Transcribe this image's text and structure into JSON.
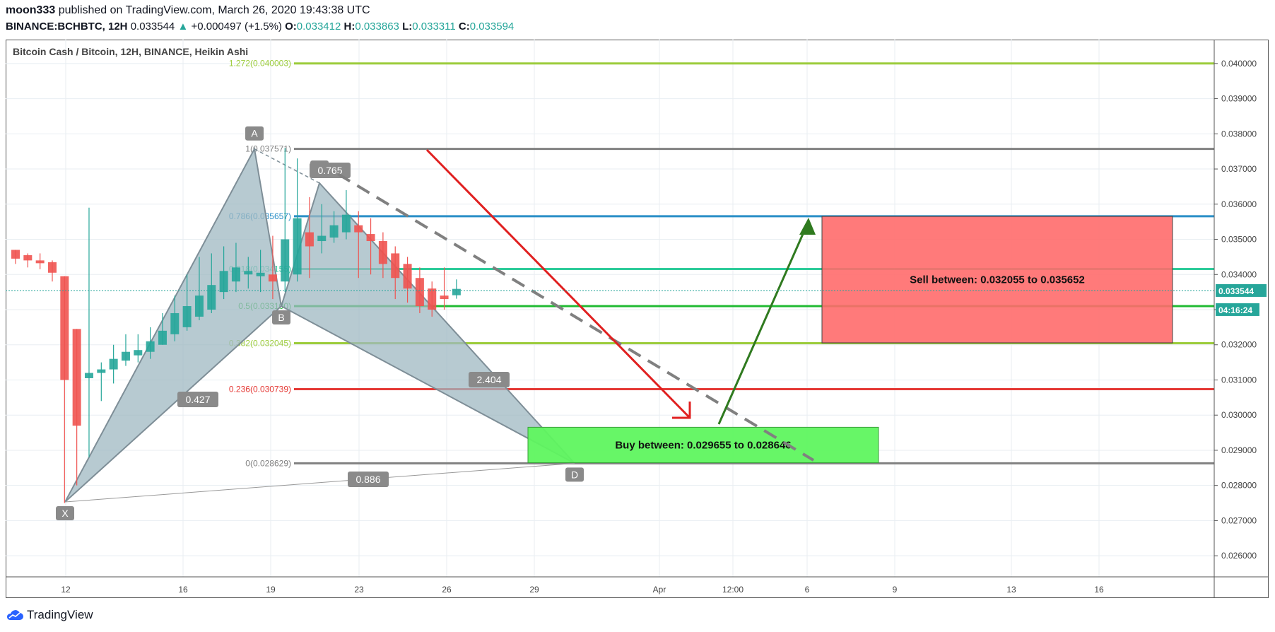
{
  "header": {
    "author": "moon333",
    "published_text": "published on TradingView.com, March 26, 2020 19:43:38 UTC",
    "symbol": "BINANCE:BCHBTC, 12H",
    "last": "0.033544",
    "change": "+0.000497 (+1.5%)",
    "o_label": "O:",
    "o": "0.033412",
    "h_label": "H:",
    "h": "0.033863",
    "l_label": "L:",
    "l": "0.033311",
    "c_label": "C:",
    "c": "0.033594"
  },
  "chart_title": "Bitcoin Cash / Bitcoin, 12H, BINANCE, Heikin Ashi",
  "price_tag": "0.033544",
  "countdown": "04:16:24",
  "logo_text": "TradingView",
  "colors": {
    "up": "#26a69a",
    "down": "#ef5350",
    "harmonic": "#9fb8c2",
    "buy": "#5ff55f",
    "sell": "#ff6b6b"
  },
  "chart_data": {
    "type": "candlestick",
    "x_ticks": [
      "12",
      "16",
      "19",
      "23",
      "26",
      "29",
      "Apr",
      "12:00",
      "6",
      "9",
      "13",
      "16"
    ],
    "y_ticks": [
      "0.040000",
      "0.039000",
      "0.038000",
      "0.037000",
      "0.036000",
      "0.035000",
      "0.034000",
      "0.033000",
      "0.032000",
      "0.031000",
      "0.030000",
      "0.029000",
      "0.028000",
      "0.027000",
      "0.026000"
    ],
    "ylim": [
      0.0254,
      0.0406
    ],
    "candles": [
      {
        "o": 0.0347,
        "h": 0.0347,
        "c": 0.03445,
        "l": 0.0343
      },
      {
        "o": 0.03455,
        "h": 0.0346,
        "c": 0.0344,
        "l": 0.0342
      },
      {
        "o": 0.0344,
        "h": 0.0346,
        "c": 0.03432,
        "l": 0.03415
      },
      {
        "o": 0.03435,
        "h": 0.0344,
        "c": 0.03405,
        "l": 0.0338
      },
      {
        "o": 0.03395,
        "h": 0.03395,
        "c": 0.031,
        "l": 0.0275
      },
      {
        "o": 0.03245,
        "h": 0.03245,
        "c": 0.0297,
        "l": 0.028
      },
      {
        "o": 0.03105,
        "h": 0.0359,
        "c": 0.0312,
        "l": 0.0288
      },
      {
        "o": 0.0312,
        "h": 0.0315,
        "c": 0.0313,
        "l": 0.0304
      },
      {
        "o": 0.0313,
        "h": 0.032,
        "c": 0.0316,
        "l": 0.0309
      },
      {
        "o": 0.03155,
        "h": 0.0323,
        "c": 0.0318,
        "l": 0.0314
      },
      {
        "o": 0.0317,
        "h": 0.0323,
        "c": 0.03185,
        "l": 0.0315
      },
      {
        "o": 0.0318,
        "h": 0.0325,
        "c": 0.0321,
        "l": 0.0316
      },
      {
        "o": 0.032,
        "h": 0.0329,
        "c": 0.0324,
        "l": 0.032
      },
      {
        "o": 0.0323,
        "h": 0.0334,
        "c": 0.0329,
        "l": 0.0321
      },
      {
        "o": 0.0325,
        "h": 0.034,
        "c": 0.0331,
        "l": 0.0324
      },
      {
        "o": 0.0328,
        "h": 0.0345,
        "c": 0.0334,
        "l": 0.0327
      },
      {
        "o": 0.033,
        "h": 0.0346,
        "c": 0.0337,
        "l": 0.0329
      },
      {
        "o": 0.0335,
        "h": 0.0348,
        "c": 0.0341,
        "l": 0.0333
      },
      {
        "o": 0.0338,
        "h": 0.0349,
        "c": 0.0342,
        "l": 0.0335
      },
      {
        "o": 0.034,
        "h": 0.0345,
        "c": 0.0341,
        "l": 0.0336
      },
      {
        "o": 0.03395,
        "h": 0.0347,
        "c": 0.03405,
        "l": 0.0335
      },
      {
        "o": 0.034,
        "h": 0.0351,
        "c": 0.0338,
        "l": 0.0333
      },
      {
        "o": 0.0338,
        "h": 0.0376,
        "c": 0.035,
        "l": 0.0335
      },
      {
        "o": 0.034,
        "h": 0.0373,
        "c": 0.0356,
        "l": 0.0338
      },
      {
        "o": 0.0352,
        "h": 0.0362,
        "c": 0.0348,
        "l": 0.0339
      },
      {
        "o": 0.03495,
        "h": 0.036,
        "c": 0.0351,
        "l": 0.0346
      },
      {
        "o": 0.03505,
        "h": 0.0358,
        "c": 0.0354,
        "l": 0.0349
      },
      {
        "o": 0.0352,
        "h": 0.0364,
        "c": 0.0357,
        "l": 0.035
      },
      {
        "o": 0.0354,
        "h": 0.0358,
        "c": 0.0352,
        "l": 0.0339
      },
      {
        "o": 0.03515,
        "h": 0.0356,
        "c": 0.03495,
        "l": 0.034
      },
      {
        "o": 0.03495,
        "h": 0.0352,
        "c": 0.0343,
        "l": 0.0339
      },
      {
        "o": 0.0346,
        "h": 0.0348,
        "c": 0.0339,
        "l": 0.0333
      },
      {
        "o": 0.0343,
        "h": 0.0345,
        "c": 0.0336,
        "l": 0.0332
      },
      {
        "o": 0.0339,
        "h": 0.0342,
        "c": 0.0331,
        "l": 0.0329
      },
      {
        "o": 0.0336,
        "h": 0.0338,
        "c": 0.033,
        "l": 0.0328
      },
      {
        "o": 0.0334,
        "h": 0.0342,
        "c": 0.0333,
        "l": 0.033
      },
      {
        "o": 0.03341,
        "h": 0.03386,
        "c": 0.03359,
        "l": 0.03331
      }
    ],
    "harmonic": {
      "X": 0.02753,
      "A": 0.03757,
      "B": 0.0331,
      "C": 0.0366,
      "D": 0.02863,
      "labels": [
        "X",
        "A",
        "B",
        "C",
        "D"
      ],
      "ratios": [
        "0.427",
        "0.765",
        "2.404",
        "0.886"
      ]
    },
    "fib_levels": [
      {
        "label": "1.272(0.040003)",
        "price": 0.040003,
        "color": "#9ccc3b"
      },
      {
        "label": "1(0.037571)",
        "price": 0.037571,
        "color": "#808080"
      },
      {
        "label": "0.786(0.035657)",
        "price": 0.035657,
        "color": "#2a8fc7"
      },
      {
        "label": "0.618(0.034155)",
        "price": 0.034155,
        "color": "#2ecc9a"
      },
      {
        "label": "0.5(0.033100)",
        "price": 0.0331,
        "color": "#21bb33"
      },
      {
        "label": "0.382(0.032045)",
        "price": 0.032045,
        "color": "#9ccc3b"
      },
      {
        "label": "0.236(0.030739)",
        "price": 0.030739,
        "color": "#e53935"
      },
      {
        "label": "0(0.028629)",
        "price": 0.028629,
        "color": "#808080"
      }
    ],
    "buy_zone": {
      "text": "Buy between: 0.029655 to 0.028646",
      "high": 0.029655,
      "low": 0.028646
    },
    "sell_zone": {
      "text": "Sell between: 0.032055 to 0.035652",
      "high": 0.035652,
      "low": 0.032055
    },
    "last_price": 0.033544
  }
}
